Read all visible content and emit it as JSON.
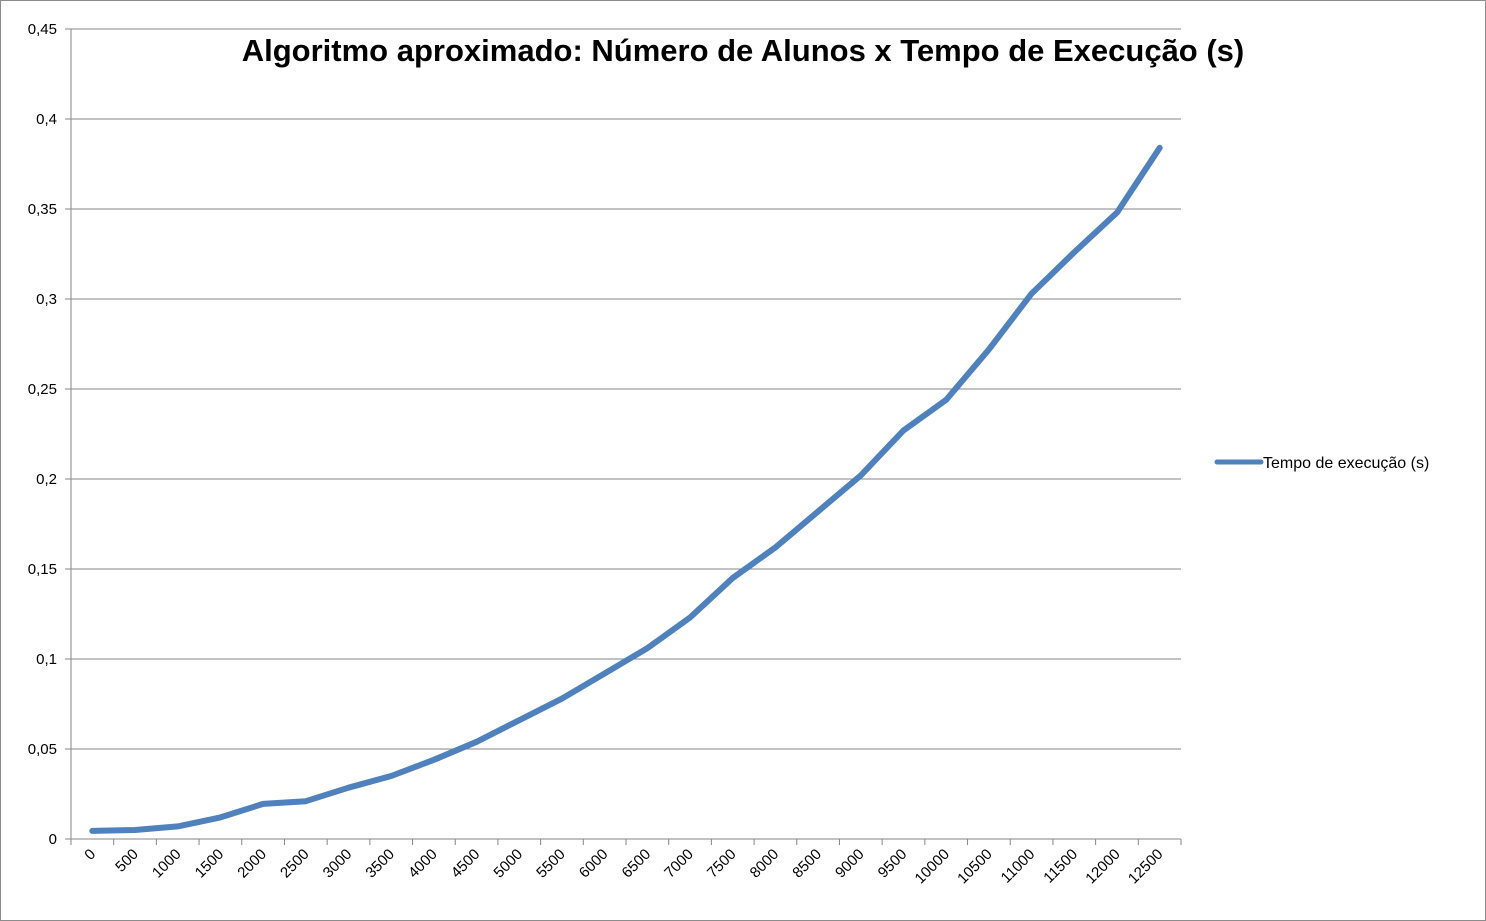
{
  "chart_data": {
    "type": "line",
    "title": "Algoritmo aproximado: Número de Alunos x Tempo de Execução (s)",
    "xlabel": "",
    "ylabel": "",
    "categories": [
      "0",
      "500",
      "1000",
      "1500",
      "2000",
      "2500",
      "3000",
      "3500",
      "4000",
      "4500",
      "5000",
      "5500",
      "6000",
      "6500",
      "7000",
      "7500",
      "8000",
      "8500",
      "9000",
      "9500",
      "10000",
      "10500",
      "11000",
      "11500",
      "12000",
      "12500"
    ],
    "series": [
      {
        "name": "Tempo de execução (s)",
        "color": "#4f81bd",
        "values": [
          0.0045,
          0.005,
          0.007,
          0.012,
          0.0195,
          0.021,
          0.0285,
          0.035,
          0.044,
          0.054,
          0.066,
          0.078,
          0.092,
          0.106,
          0.123,
          0.145,
          0.162,
          0.182,
          0.202,
          0.227,
          0.244,
          0.272,
          0.303,
          0.326,
          0.348,
          0.384
        ]
      }
    ],
    "ylim": [
      0,
      0.45
    ],
    "yticks": [
      0,
      0.05,
      0.1,
      0.15,
      0.2,
      0.25,
      0.3,
      0.35,
      0.4,
      0.45
    ],
    "ytick_labels": [
      "0",
      "0,05",
      "0,1",
      "0,15",
      "0,2",
      "0,25",
      "0,3",
      "0,35",
      "0,4",
      "0,45"
    ],
    "grid": true,
    "gridline_color": "#868686",
    "legend_position": "right"
  }
}
